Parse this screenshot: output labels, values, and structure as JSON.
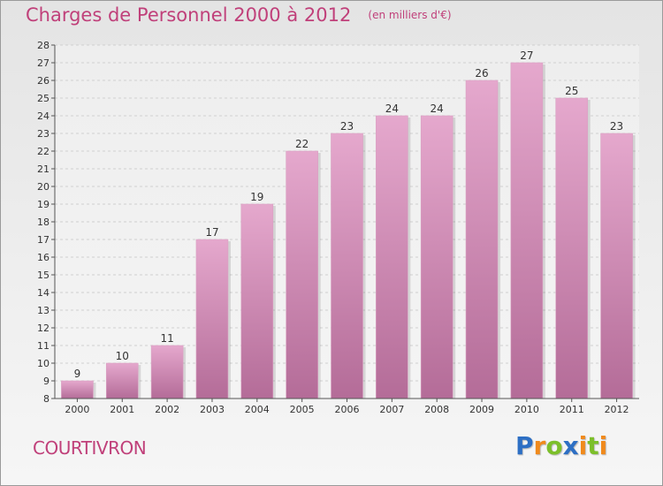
{
  "header": {
    "title": "Charges de Personnel 2000 à 2012",
    "subtitle": "(en milliers d'€)"
  },
  "footer": {
    "commune": "COURTIVRON",
    "brand": {
      "text": "Proxiti",
      "letters": [
        {
          "ch": "P",
          "color": "#2d6fc4"
        },
        {
          "ch": "r",
          "color": "#f08a1c"
        },
        {
          "ch": "o",
          "color": "#7cbf2a"
        },
        {
          "ch": "x",
          "color": "#2d6fc4"
        },
        {
          "ch": "i",
          "color": "#f08a1c"
        },
        {
          "ch": "t",
          "color": "#7cbf2a"
        },
        {
          "ch": "i",
          "color": "#f08a1c"
        }
      ]
    }
  },
  "colors": {
    "accent": "#c0407a",
    "bar_top": "#e5a8cd",
    "bar_bottom": "#b46c98",
    "grid": "#d0d0d0"
  },
  "chart_data": {
    "type": "bar",
    "categories": [
      "2000",
      "2001",
      "2002",
      "2003",
      "2004",
      "2005",
      "2006",
      "2007",
      "2008",
      "2009",
      "2010",
      "2011",
      "2012"
    ],
    "values": [
      9,
      10,
      11,
      17,
      19,
      22,
      23,
      24,
      24,
      26,
      27,
      25,
      23
    ],
    "ylim": [
      8,
      28
    ],
    "yticks": [
      8,
      9,
      10,
      11,
      12,
      13,
      14,
      15,
      16,
      17,
      18,
      19,
      20,
      21,
      22,
      23,
      24,
      25,
      26,
      27,
      28
    ],
    "grid": true
  }
}
